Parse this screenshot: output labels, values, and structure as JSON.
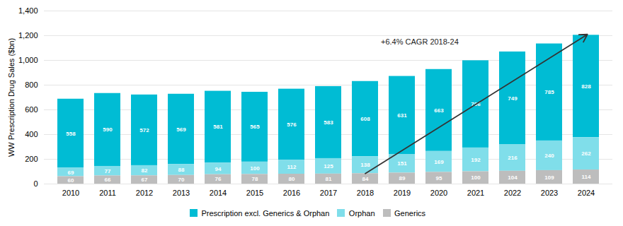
{
  "chart_data": {
    "type": "bar",
    "stacked": true,
    "categories": [
      "2010",
      "2011",
      "2012",
      "2013",
      "2014",
      "2015",
      "2016",
      "2017",
      "2018",
      "2019",
      "2020",
      "2021",
      "2022",
      "2023",
      "2024"
    ],
    "series": [
      {
        "name": "Prescription excl. Generics & Orphan",
        "color": "#00bcd4",
        "values": [
          558,
          590,
          572,
          569,
          581,
          565,
          576,
          583,
          608,
          631,
          663,
          706,
          749,
          785,
          828
        ]
      },
      {
        "name": "Orphan",
        "color": "#80deea",
        "values": [
          69,
          77,
          82,
          88,
          94,
          100,
          112,
          125,
          138,
          151,
          169,
          192,
          216,
          240,
          262
        ]
      },
      {
        "name": "Generics",
        "color": "#bdbdbd",
        "values": [
          60,
          66,
          67,
          70,
          76,
          78,
          80,
          81,
          84,
          89,
          95,
          100,
          104,
          109,
          114
        ]
      }
    ],
    "ylabel": "WW Prescription Drug Sales ($bn)",
    "ylim": [
      0,
      1400
    ],
    "yticks": [
      0,
      200,
      400,
      600,
      800,
      {
        "value": 1000,
        "label": "1,000"
      },
      {
        "value": 1200,
        "label": "1,200"
      },
      {
        "value": 1400,
        "label": "1,400"
      }
    ],
    "grid": true,
    "data_labels": true,
    "legend": "bottom",
    "annotations": [
      {
        "text": "+6.4% CAGR 2018-24",
        "from": "2018",
        "to": "2024"
      }
    ]
  }
}
